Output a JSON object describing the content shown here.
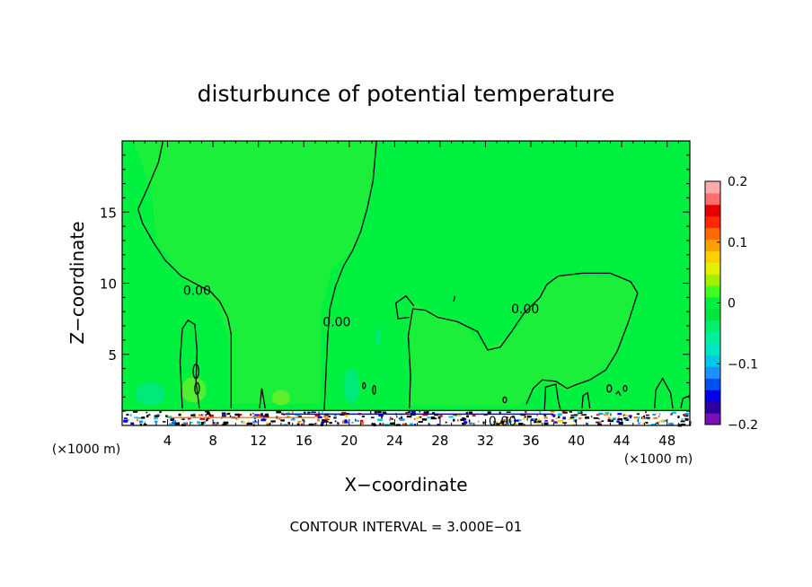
{
  "chart_data": {
    "type": "heatmap",
    "title": "disturbunce of potential temperature",
    "xlabel": "X−coordinate",
    "ylabel": "Z−coordinate",
    "x_unit_left": "(×1000 m)",
    "x_unit_right": "(×1000 m)",
    "footer": "CONTOUR INTERVAL = 3.000E−01",
    "xlim": [
      0,
      50
    ],
    "ylim": [
      0,
      20
    ],
    "x_ticks": [
      "4",
      "8",
      "12",
      "16",
      "20",
      "24",
      "28",
      "32",
      "36",
      "40",
      "44",
      "48"
    ],
    "x_tick_values": [
      4,
      8,
      12,
      16,
      20,
      24,
      28,
      32,
      36,
      40,
      44,
      48
    ],
    "y_ticks": [
      "5",
      "10",
      "15"
    ],
    "y_tick_values": [
      5,
      10,
      15
    ],
    "contour_label": "0.00",
    "contour_labels": [
      {
        "text": "0.00",
        "x": 6.6,
        "y": 9.5
      },
      {
        "text": "0.00",
        "x": 18.9,
        "y": 7.3
      },
      {
        "text": "0.00",
        "x": 35.5,
        "y": 8.2
      },
      {
        "text": "0.00",
        "x": 33.5,
        "y": 0.3
      }
    ],
    "colorbar": {
      "min": -0.2,
      "max": 0.2,
      "tick_labels": [
        "0.2",
        "0.1",
        "0",
        "−0.1",
        "−0.2"
      ],
      "tick_values": [
        0.2,
        0.1,
        0,
        -0.1,
        -0.2
      ],
      "colors": [
        "#7a0fb4",
        "#2b00a0",
        "#0000e6",
        "#0050f0",
        "#1e90ff",
        "#00c8e6",
        "#00e6c0",
        "#00f0a0",
        "#00f06e",
        "#00e63c",
        "#00f040",
        "#40ff20",
        "#a0f000",
        "#e6f000",
        "#ffd000",
        "#ffa000",
        "#ff6a00",
        "#ff2800",
        "#e60000",
        "#ff6e6e",
        "#ffaaaa"
      ]
    },
    "background_value": 0,
    "background_color": "#00f040",
    "field_color": "#33ee33"
  }
}
